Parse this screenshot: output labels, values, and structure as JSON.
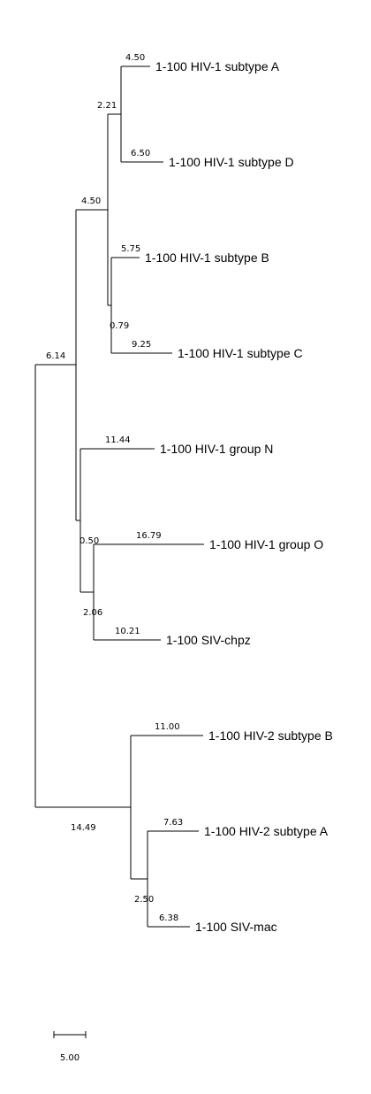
{
  "tree": {
    "leaves": [
      {
        "id": "hiv1_A",
        "label": "1-100 HIV-1 subtype A",
        "branch_length": "4.50"
      },
      {
        "id": "hiv1_D",
        "label": "1-100 HIV-1 subtype D",
        "branch_length": "6.50"
      },
      {
        "id": "hiv1_B",
        "label": "1-100 HIV-1 subtype B",
        "branch_length": "5.75"
      },
      {
        "id": "hiv1_C",
        "label": "1-100 HIV-1 subtype C",
        "branch_length": "9.25"
      },
      {
        "id": "hiv1_N",
        "label": "1-100 HIV-1 group N",
        "branch_length": "11.44"
      },
      {
        "id": "hiv1_O",
        "label": "1-100 HIV-1 group O",
        "branch_length": "16.79"
      },
      {
        "id": "siv_cpz",
        "label": "1-100 SIV-chpz",
        "branch_length": "10.21"
      },
      {
        "id": "hiv2_B",
        "label": "1-100 HIV-2 subtype B",
        "branch_length": "11.00"
      },
      {
        "id": "hiv2_A",
        "label": "1-100 HIV-2 subtype A",
        "branch_length": "7.63"
      },
      {
        "id": "siv_mac",
        "label": "1-100 SIV-mac",
        "branch_length": "6.38"
      }
    ],
    "internal": [
      {
        "id": "AD",
        "branch_length": "2.21"
      },
      {
        "id": "BC",
        "branch_length": "0.79"
      },
      {
        "id": "ABCD",
        "branch_length": "4.50"
      },
      {
        "id": "O_cpz",
        "branch_length": "2.06"
      },
      {
        "id": "N_O_cpz",
        "branch_length": "0.50"
      },
      {
        "id": "HIV1_SIVcpz",
        "branch_length": "6.14"
      },
      {
        "id": "HIV2A_SIVmac",
        "branch_length": "2.50"
      },
      {
        "id": "HIV2_SIVmac",
        "branch_length": "14.49"
      }
    ]
  },
  "scale_bar": {
    "label": "5.00"
  }
}
